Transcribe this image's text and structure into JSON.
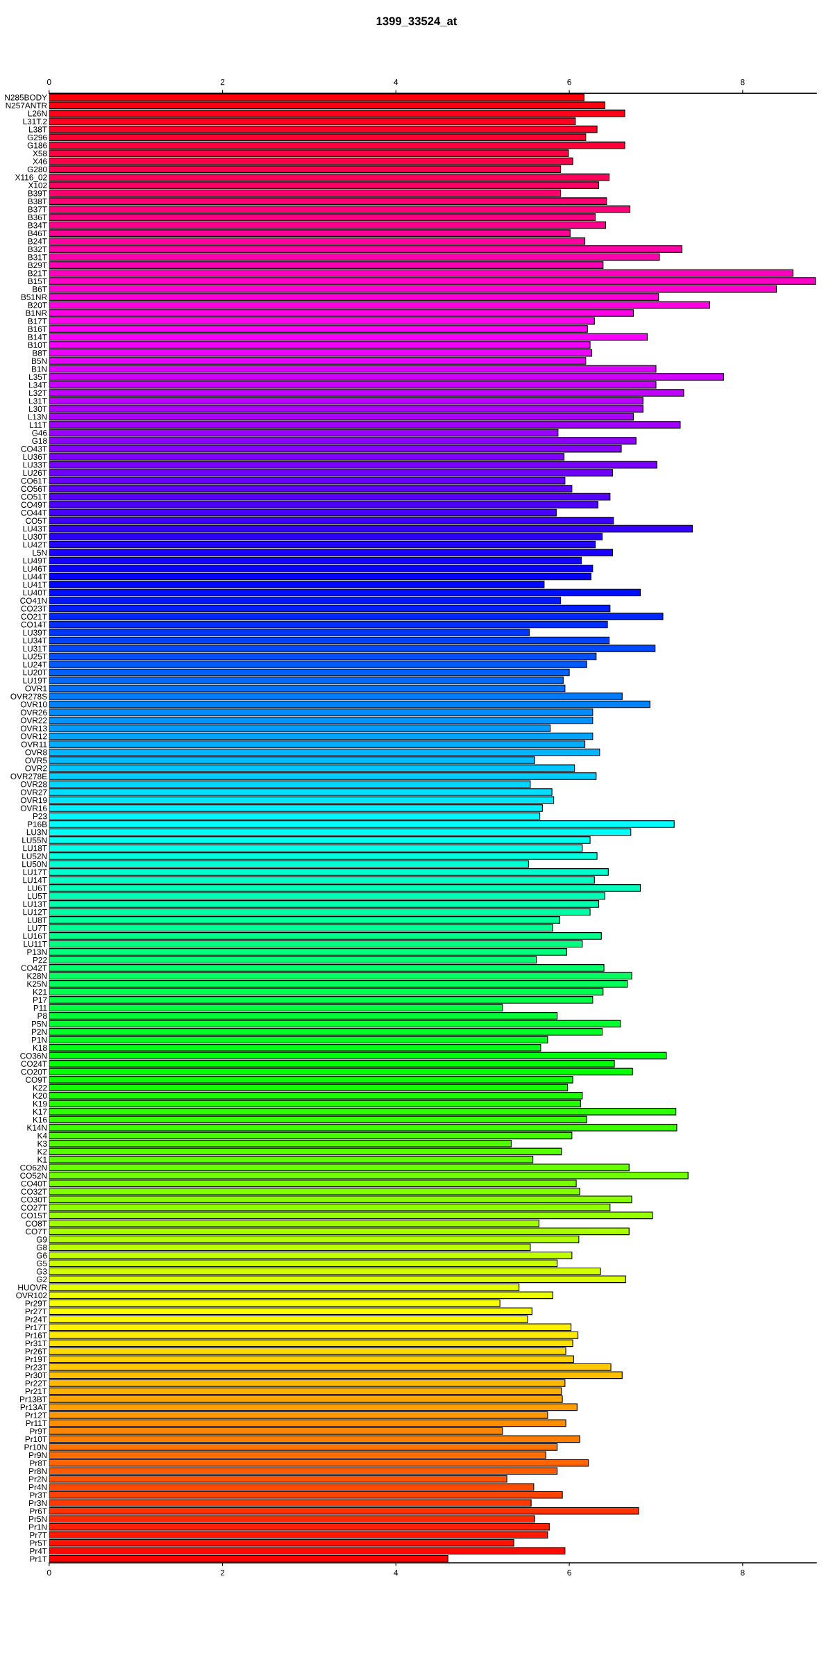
{
  "chart_data": {
    "type": "bar",
    "orientation": "horizontal",
    "title": "1399_33524_at",
    "categories": [
      "N285BODY",
      "N257ANTR",
      "L26N",
      "L31T.2",
      "L38T",
      "G296",
      "G186",
      "X58",
      "X46",
      "G280",
      "X116_02",
      "X102",
      "B39T",
      "B38T",
      "B37T",
      "B36T",
      "B34T",
      "B46T",
      "B24T",
      "B32T",
      "B31T",
      "B29T",
      "B21T",
      "B15T",
      "B6T",
      "B51NR",
      "B20T",
      "B1NR",
      "B17T",
      "B16T",
      "B14T",
      "B10T",
      "B8T",
      "B5N",
      "B1N",
      "L35T",
      "L34T",
      "L32T",
      "L31T",
      "L30T",
      "L13N",
      "L11T",
      "G46",
      "G18",
      "CO43T",
      "LU36T",
      "LU33T",
      "LU26T",
      "CO61T",
      "CO56T",
      "CO51T",
      "CO49T",
      "CO44T",
      "CO5T",
      "LU43T",
      "LU30T",
      "LU42T",
      "L5N",
      "LU49T",
      "LU46T",
      "LU44T",
      "LU41T",
      "LU40T",
      "CO41N",
      "CO23T",
      "CO21T",
      "CO14T",
      "LU39T",
      "LU34T",
      "LU31T",
      "LU25T",
      "LU24T",
      "LU20T",
      "LU19T",
      "OVR1",
      "OVR278S",
      "OVR10",
      "OVR26",
      "OVR22",
      "OVR13",
      "OVR12",
      "OVR11",
      "OVR8",
      "OVR5",
      "OVR2",
      "OVR278E",
      "OVR28",
      "OVR27",
      "OVR19",
      "OVR16",
      "P23",
      "P16B",
      "LU3N",
      "LU55N",
      "LU18T",
      "LU52N",
      "LU50N",
      "LU17T",
      "LU14T",
      "LU6T",
      "LU5T",
      "LU13T",
      "LU12T",
      "LU8T",
      "LU7T",
      "LU16T",
      "LU11T",
      "P13N",
      "P22",
      "CO42T",
      "K28N",
      "K25N",
      "K21",
      "P17",
      "P11",
      "P8",
      "P5N",
      "P2N",
      "P1N",
      "K18",
      "CO36N",
      "CO24T",
      "CO20T",
      "CO9T",
      "K22",
      "K20",
      "K19",
      "K17",
      "K16",
      "K14N",
      "K4",
      "K3",
      "K2",
      "K1",
      "CO62N",
      "CO52N",
      "CO40T",
      "CO32T",
      "CO30T",
      "CO27T",
      "CO15T",
      "CO8T",
      "CO7T",
      "G9",
      "G8",
      "G6",
      "G5",
      "G3",
      "G2",
      "HUOVR",
      "OVR102",
      "Pr29T",
      "Pr27T",
      "Pr24T",
      "Pr17T",
      "Pr16T",
      "Pr31T",
      "Pr26T",
      "Pr19T",
      "Pr23T",
      "Pr30T",
      "Pr22T",
      "Pr21T",
      "Pr13BT",
      "Pr13AT",
      "Pr12T",
      "Pr11T",
      "Pr9T",
      "Pr10T",
      "Pr10N",
      "Pr9N",
      "Pr8T",
      "Pr8N",
      "Pr2N",
      "Pr4N",
      "Pr3T",
      "Pr3N",
      "Pr6T",
      "Pr5N",
      "Pr1N",
      "Pr7T",
      "Pr5T",
      "Pr4T",
      "Pr1T"
    ],
    "values": [
      6.17,
      6.41,
      6.64,
      6.07,
      6.32,
      6.19,
      6.64,
      5.99,
      6.04,
      5.9,
      6.46,
      6.34,
      5.9,
      6.43,
      6.7,
      6.3,
      6.42,
      6.01,
      6.18,
      7.3,
      7.04,
      6.39,
      8.58,
      8.84,
      8.39,
      7.03,
      7.62,
      6.74,
      6.29,
      6.21,
      6.9,
      6.24,
      6.26,
      6.19,
      7.0,
      7.78,
      7.0,
      7.32,
      6.85,
      6.85,
      6.74,
      7.28,
      5.87,
      6.77,
      6.6,
      5.94,
      7.01,
      6.5,
      5.95,
      6.03,
      6.47,
      6.33,
      5.85,
      6.51,
      7.42,
      6.38,
      6.3,
      6.5,
      6.14,
      6.27,
      6.25,
      5.71,
      6.82,
      5.9,
      6.47,
      7.08,
      6.44,
      5.54,
      6.46,
      6.99,
      6.31,
      6.2,
      6.0,
      5.93,
      5.95,
      6.61,
      6.93,
      6.27,
      6.27,
      5.78,
      6.27,
      6.18,
      6.35,
      5.6,
      6.06,
      6.31,
      5.55,
      5.8,
      5.82,
      5.69,
      5.66,
      7.21,
      6.71,
      6.24,
      6.15,
      6.32,
      5.53,
      6.45,
      6.29,
      6.82,
      6.41,
      6.34,
      6.24,
      5.89,
      5.81,
      6.37,
      6.15,
      5.97,
      5.62,
      6.4,
      6.72,
      6.67,
      6.39,
      6.27,
      5.23,
      5.86,
      6.59,
      6.38,
      5.75,
      5.67,
      7.12,
      6.52,
      6.73,
      6.04,
      5.98,
      6.15,
      6.13,
      7.23,
      6.2,
      7.24,
      6.03,
      5.33,
      5.91,
      5.58,
      6.69,
      7.37,
      6.08,
      6.12,
      6.72,
      6.47,
      6.96,
      5.65,
      6.69,
      6.11,
      5.55,
      6.03,
      5.86,
      6.36,
      6.65,
      5.42,
      5.81,
      5.2,
      5.57,
      5.52,
      6.02,
      6.1,
      6.04,
      5.96,
      6.05,
      6.48,
      6.61,
      5.95,
      5.91,
      5.92,
      6.09,
      5.75,
      5.96,
      5.23,
      6.12,
      5.86,
      5.73,
      6.22,
      5.86,
      5.28,
      5.59,
      5.92,
      5.56,
      6.8,
      5.6,
      5.77,
      5.75,
      5.36,
      5.95,
      4.6
    ],
    "colors": [
      "#ff0008",
      "#ff0011",
      "#ff0019",
      "#ff0021",
      "#ff002a",
      "#ff0032",
      "#ff003a",
      "#ff0043",
      "#ff004b",
      "#ff0053",
      "#ff005b",
      "#ff0064",
      "#ff006c",
      "#ff0074",
      "#ff007d",
      "#ff0085",
      "#ff008d",
      "#ff0096",
      "#ff009e",
      "#ff00a6",
      "#ff00af",
      "#ff00b7",
      "#ff00bf",
      "#ff00c8",
      "#ff00d0",
      "#ff00d8",
      "#ff00e1",
      "#ff00e9",
      "#ff00f1",
      "#ff00f9",
      "#fc00ff",
      "#f400ff",
      "#ec00ff",
      "#e300ff",
      "#db00ff",
      "#d300ff",
      "#ca00ff",
      "#c200ff",
      "#ba00ff",
      "#b100ff",
      "#a900ff",
      "#a100ff",
      "#9800ff",
      "#9000ff",
      "#8800ff",
      "#8000ff",
      "#7700ff",
      "#6f00ff",
      "#6700ff",
      "#5e00ff",
      "#5600ff",
      "#4e00ff",
      "#4500ff",
      "#3d00ff",
      "#3500ff",
      "#2c00ff",
      "#2400ff",
      "#1c00ff",
      "#1300ff",
      "#0b00ff",
      "#0300ff",
      "#0006ff",
      "#000eff",
      "#0016ff",
      "#001eff",
      "#0027ff",
      "#002fff",
      "#0037ff",
      "#0040ff",
      "#0048ff",
      "#0050ff",
      "#0059ff",
      "#0061ff",
      "#0069ff",
      "#0072ff",
      "#007aff",
      "#0082ff",
      "#008bff",
      "#0093ff",
      "#009bff",
      "#00a4ff",
      "#00acff",
      "#00b4ff",
      "#00bcff",
      "#00c5ff",
      "#00cdff",
      "#00d5ff",
      "#00deff",
      "#00e6ff",
      "#00eeff",
      "#00f7ff",
      "#00ffff",
      "#00fff7",
      "#00ffee",
      "#00ffe6",
      "#00ffde",
      "#00ffd5",
      "#00ffcd",
      "#00ffc5",
      "#00ffbc",
      "#00ffb4",
      "#00ffac",
      "#00ffa4",
      "#00ff9b",
      "#00ff93",
      "#00ff8b",
      "#00ff82",
      "#00ff7a",
      "#00ff72",
      "#00ff69",
      "#00ff61",
      "#00ff59",
      "#00ff50",
      "#00ff48",
      "#00ff40",
      "#00ff37",
      "#00ff2f",
      "#00ff27",
      "#00ff1e",
      "#00ff16",
      "#00ff0e",
      "#00ff06",
      "#03ff00",
      "#0bff00",
      "#13ff00",
      "#1cff00",
      "#24ff00",
      "#2cff00",
      "#35ff00",
      "#3dff00",
      "#45ff00",
      "#4eff00",
      "#56ff00",
      "#5eff00",
      "#67ff00",
      "#6fff00",
      "#77ff00",
      "#7fff00",
      "#88ff00",
      "#90ff00",
      "#98ff00",
      "#a1ff00",
      "#a9ff00",
      "#b1ff00",
      "#baff00",
      "#c2ff00",
      "#caff00",
      "#d3ff00",
      "#dbff00",
      "#e3ff00",
      "#ecff00",
      "#f4ff00",
      "#fcff00",
      "#fff900",
      "#fff100",
      "#ffe900",
      "#ffe100",
      "#ffd800",
      "#ffd000",
      "#ffc800",
      "#ffbf00",
      "#ffb700",
      "#ffaf00",
      "#ffa600",
      "#ff9e00",
      "#ff9600",
      "#ff8d00",
      "#ff8500",
      "#ff7d00",
      "#ff7400",
      "#ff6c00",
      "#ff6400",
      "#ff5b00",
      "#ff5300",
      "#ff4b00",
      "#ff4300",
      "#ff3a00",
      "#ff3200",
      "#ff2a00",
      "#ff2100",
      "#ff1900",
      "#ff1100",
      "#ff0800",
      "#ff0000"
    ],
    "xlim": [
      0,
      8.85
    ],
    "xticks": [
      0,
      2,
      4,
      6,
      8
    ],
    "x2lim": [
      0,
      8.85
    ],
    "x2ticks": [
      0,
      2,
      4,
      6,
      8
    ],
    "grid": false
  }
}
